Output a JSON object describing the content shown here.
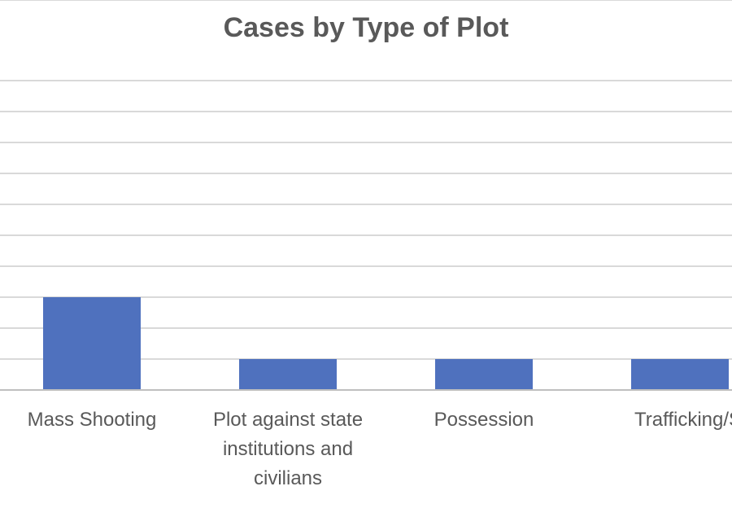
{
  "chart_data": {
    "type": "bar",
    "title": "Cases by Type of Plot",
    "categories": [
      "Mass Shooting",
      "Plot against state institutions and civilians",
      "Possession",
      "Trafficking/Sel"
    ],
    "category_display": [
      "Mass Shooting",
      "Plot against state\ninstitutions and\ncivilians",
      "Possession",
      "Trafficking/Sel"
    ],
    "values": [
      3,
      1,
      1,
      1
    ],
    "ylim": [
      0,
      10
    ],
    "grid": true,
    "colors": {
      "bar": "#4f71be",
      "grid": "#d9d9d9",
      "axis": "#bfbfbf",
      "text": "#595959"
    }
  }
}
